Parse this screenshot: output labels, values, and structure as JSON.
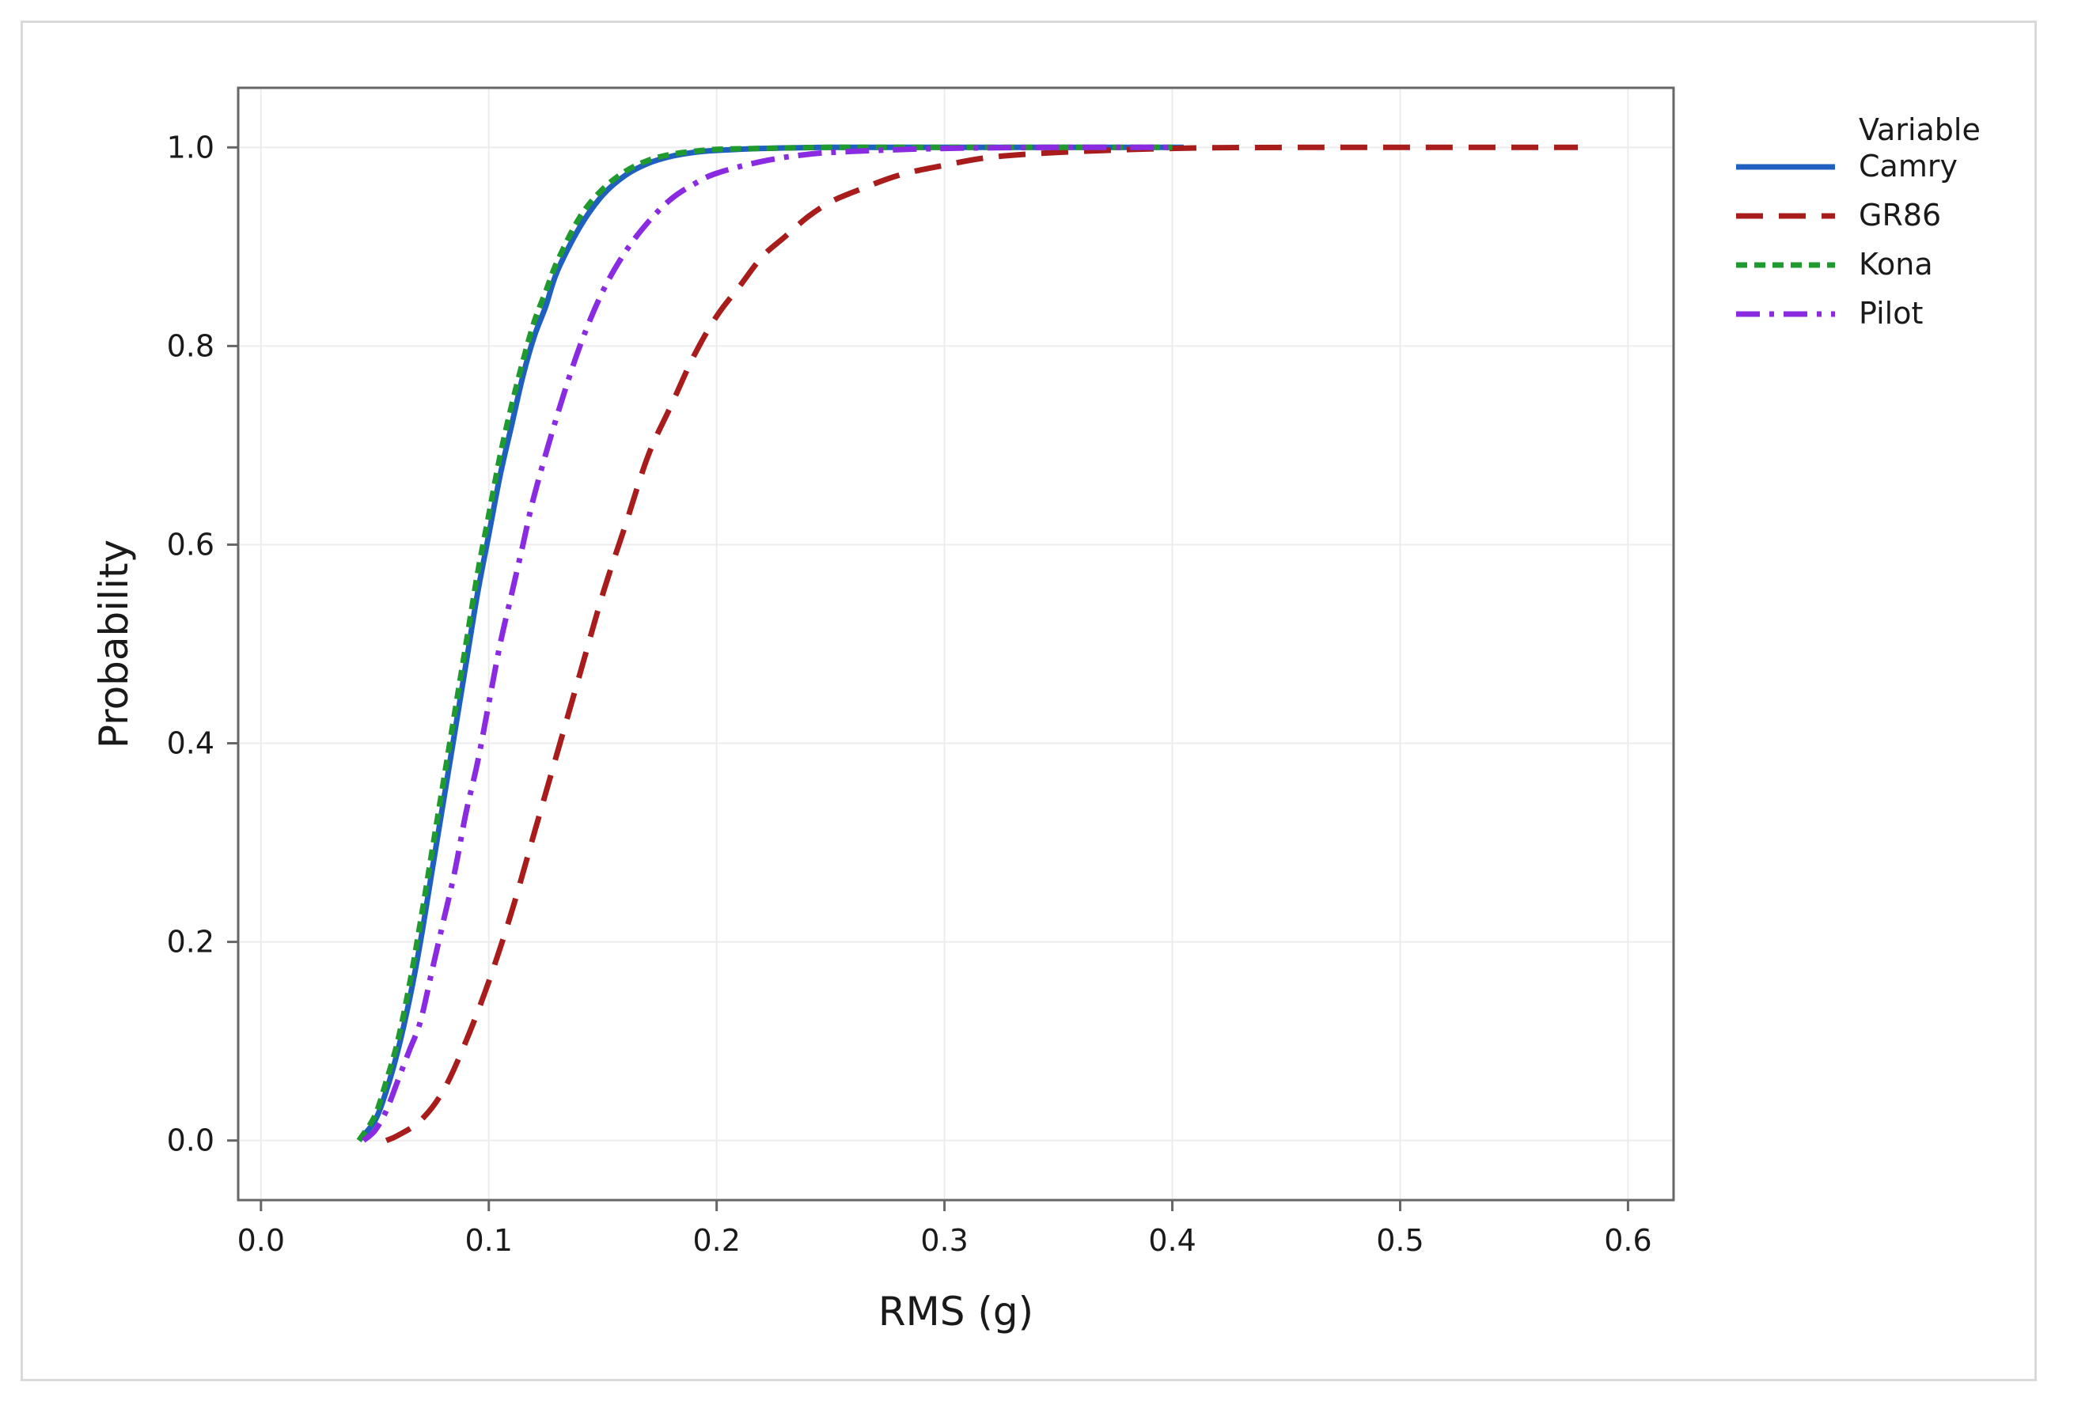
{
  "chart_data": {
    "type": "line",
    "title": "",
    "xlabel": "RMS (g)",
    "ylabel": "Probability",
    "xlim": [
      -0.01,
      0.62
    ],
    "ylim": [
      -0.06,
      1.06
    ],
    "xticks": [
      0.0,
      0.1,
      0.2,
      0.3,
      0.4,
      0.5,
      0.6
    ],
    "xtick_labels": [
      "0.0",
      "0.1",
      "0.2",
      "0.3",
      "0.4",
      "0.5",
      "0.6"
    ],
    "yticks": [
      0.0,
      0.2,
      0.4,
      0.6,
      0.8,
      1.0
    ],
    "ytick_labels": [
      "0.0",
      "0.2",
      "0.4",
      "0.6",
      "0.8",
      "1.0"
    ],
    "grid": true,
    "legend": {
      "title": "Variable",
      "placement": "right-top-outside"
    },
    "series": [
      {
        "name": "Camry",
        "color": "#1f5fbf",
        "dash": "solid",
        "x": [
          0.043,
          0.05,
          0.055,
          0.06,
          0.065,
          0.07,
          0.075,
          0.08,
          0.085,
          0.09,
          0.095,
          0.1,
          0.105,
          0.11,
          0.115,
          0.12,
          0.125,
          0.13,
          0.14,
          0.15,
          0.16,
          0.17,
          0.18,
          0.19,
          0.2,
          0.22,
          0.25,
          0.3,
          0.35,
          0.405
        ],
        "y": [
          0.0,
          0.02,
          0.05,
          0.09,
          0.14,
          0.2,
          0.27,
          0.34,
          0.41,
          0.48,
          0.55,
          0.61,
          0.67,
          0.72,
          0.77,
          0.81,
          0.84,
          0.875,
          0.92,
          0.952,
          0.972,
          0.984,
          0.991,
          0.995,
          0.997,
          0.999,
          1.0,
          1.0,
          1.0,
          1.0
        ]
      },
      {
        "name": "GR86",
        "color": "#a81c1c",
        "dash": "long-dash",
        "x": [
          0.055,
          0.06,
          0.07,
          0.08,
          0.09,
          0.1,
          0.11,
          0.12,
          0.13,
          0.14,
          0.15,
          0.16,
          0.17,
          0.18,
          0.19,
          0.2,
          0.21,
          0.22,
          0.23,
          0.24,
          0.25,
          0.26,
          0.28,
          0.3,
          0.32,
          0.35,
          0.4,
          0.45,
          0.5,
          0.578
        ],
        "y": [
          0.0,
          0.005,
          0.02,
          0.05,
          0.1,
          0.16,
          0.23,
          0.31,
          0.39,
          0.47,
          0.55,
          0.62,
          0.69,
          0.74,
          0.79,
          0.83,
          0.86,
          0.89,
          0.91,
          0.93,
          0.945,
          0.955,
          0.972,
          0.982,
          0.99,
          0.995,
          0.999,
          1.0,
          1.0,
          1.0
        ]
      },
      {
        "name": "Kona",
        "color": "#1f9a2e",
        "dash": "short-dash",
        "x": [
          0.043,
          0.05,
          0.055,
          0.06,
          0.065,
          0.07,
          0.075,
          0.08,
          0.085,
          0.09,
          0.095,
          0.1,
          0.105,
          0.11,
          0.115,
          0.12,
          0.125,
          0.13,
          0.14,
          0.15,
          0.16,
          0.17,
          0.18,
          0.19,
          0.2,
          0.22,
          0.25,
          0.3,
          0.35,
          0.4
        ],
        "y": [
          0.0,
          0.025,
          0.06,
          0.1,
          0.155,
          0.22,
          0.29,
          0.36,
          0.43,
          0.5,
          0.57,
          0.63,
          0.69,
          0.74,
          0.785,
          0.825,
          0.855,
          0.885,
          0.93,
          0.958,
          0.976,
          0.987,
          0.993,
          0.996,
          0.998,
          0.999,
          1.0,
          1.0,
          1.0,
          1.0
        ]
      },
      {
        "name": "Pilot",
        "color": "#8a2be2",
        "dash": "dash-dot",
        "x": [
          0.045,
          0.05,
          0.055,
          0.06,
          0.065,
          0.07,
          0.075,
          0.08,
          0.085,
          0.09,
          0.095,
          0.1,
          0.105,
          0.11,
          0.115,
          0.12,
          0.13,
          0.14,
          0.15,
          0.16,
          0.17,
          0.18,
          0.19,
          0.2,
          0.22,
          0.24,
          0.26,
          0.3,
          0.35,
          0.4
        ],
        "y": [
          0.0,
          0.01,
          0.03,
          0.06,
          0.09,
          0.12,
          0.17,
          0.22,
          0.27,
          0.33,
          0.38,
          0.44,
          0.5,
          0.55,
          0.6,
          0.65,
          0.73,
          0.8,
          0.855,
          0.895,
          0.925,
          0.948,
          0.963,
          0.974,
          0.986,
          0.993,
          0.996,
          0.999,
          1.0,
          1.0
        ]
      }
    ]
  }
}
